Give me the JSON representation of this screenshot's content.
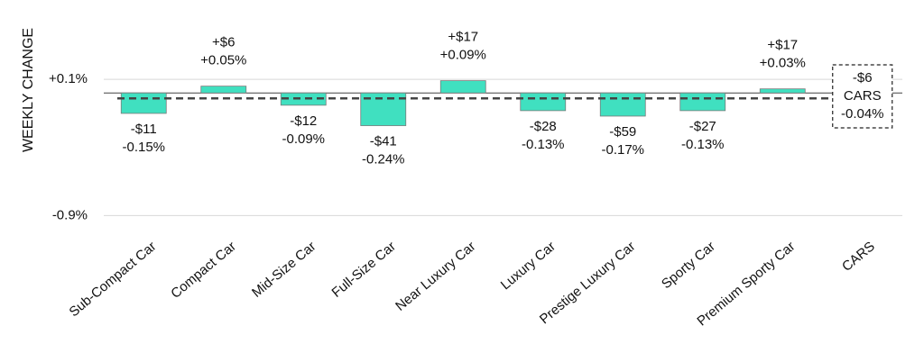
{
  "chart_data": {
    "type": "bar",
    "y_label": "WEEKLY CHANGE",
    "categories": [
      "Sub-Compact Car",
      "Compact Car",
      "Mid-Size Car",
      "Full-Size Car",
      "Near Luxury Car",
      "Luxury Car",
      "Prestige Luxury Car",
      "Sporty Car",
      "Premium Sporty Car"
    ],
    "values": [
      -0.15,
      0.05,
      -0.09,
      -0.24,
      0.09,
      -0.13,
      -0.17,
      -0.13,
      0.03
    ],
    "value_labels": [
      "-0.15%",
      "+0.05%",
      "-0.09%",
      "-0.24%",
      "+0.09%",
      "-0.13%",
      "-0.17%",
      "-0.13%",
      "+0.03%"
    ],
    "dollar_values": [
      -11,
      6,
      -12,
      -41,
      17,
      -28,
      -59,
      -27,
      17
    ],
    "dollar_labels": [
      "-$11",
      "+$6",
      "-$12",
      "-$41",
      "+$17",
      "-$28",
      "-$59",
      "-$27",
      "+$17"
    ],
    "color": "#40e0c0",
    "average": {
      "name": "CARS",
      "value": -0.04,
      "value_label": "-0.04%",
      "dollar_value": -6,
      "dollar_label": "-$6"
    },
    "ylim": [
      -0.97,
      0.55
    ],
    "yticks": [
      {
        "value": 0.1,
        "label": "+0.1%"
      },
      {
        "value": -0.9,
        "label": "-0.9%"
      }
    ],
    "grid": true
  }
}
